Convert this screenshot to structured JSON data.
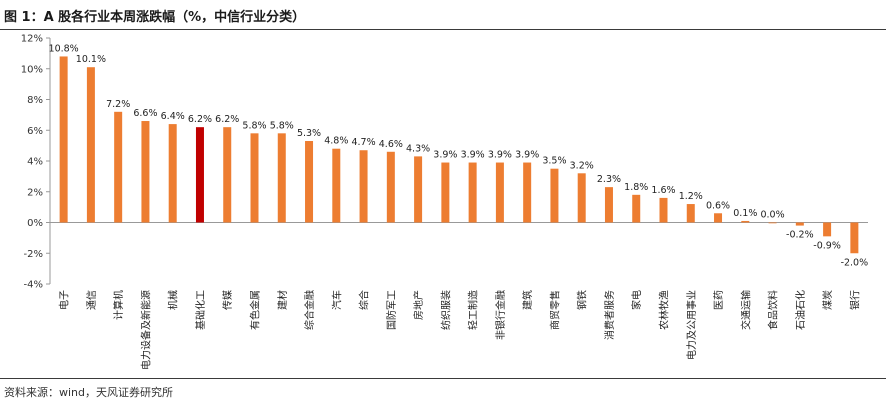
{
  "title": "图 1：A 股各行业本周涨跌幅（%，中信行业分类）",
  "source": "资料来源：wind，天风证券研究所",
  "colors": {
    "bar": "#ED7D31",
    "highlight": "#C00000",
    "axis": "#999999"
  },
  "chart_data": {
    "type": "bar",
    "title": "图 1：A 股各行业本周涨跌幅（%，中信行业分类）",
    "xlabel": "",
    "ylabel": "",
    "ylim": [
      -4,
      12
    ],
    "yticks": [
      "12%",
      "10%",
      "8%",
      "6%",
      "4%",
      "2%",
      "0%",
      "-2%",
      "-4%"
    ],
    "ytick_values": [
      12,
      10,
      8,
      6,
      4,
      2,
      0,
      -2,
      -4
    ],
    "grid": false,
    "highlight_category": "基础化工",
    "categories": [
      "电子",
      "通信",
      "计算机",
      "电力设备及新能源",
      "机械",
      "基础化工",
      "传媒",
      "有色金属",
      "建材",
      "综合金融",
      "汽车",
      "综合",
      "国防军工",
      "房地产",
      "纺织服装",
      "轻工制造",
      "非银行金融",
      "建筑",
      "商贸零售",
      "钢铁",
      "消费者服务",
      "家电",
      "农林牧渔",
      "电力及公用事业",
      "医药",
      "交通运输",
      "食品饮料",
      "石油石化",
      "煤炭",
      "银行"
    ],
    "values": [
      10.8,
      10.1,
      7.2,
      6.6,
      6.4,
      6.2,
      6.2,
      5.8,
      5.8,
      5.3,
      4.8,
      4.7,
      4.6,
      4.3,
      3.9,
      3.9,
      3.9,
      3.9,
      3.5,
      3.2,
      2.3,
      1.8,
      1.6,
      1.2,
      0.6,
      0.1,
      0.0,
      -0.2,
      -0.9,
      -2.0
    ],
    "value_labels": [
      "10.8%",
      "10.1%",
      "7.2%",
      "6.6%",
      "6.4%",
      "6.2%",
      "6.2%",
      "5.8%",
      "5.8%",
      "5.3%",
      "4.8%",
      "4.7%",
      "4.6%",
      "4.3%",
      "3.9%",
      "3.9%",
      "3.9%",
      "3.9%",
      "3.5%",
      "3.2%",
      "2.3%",
      "1.8%",
      "1.6%",
      "1.2%",
      "0.6%",
      "0.1%",
      "0.0%",
      "-0.2%",
      "-0.9%",
      "-2.0%"
    ]
  }
}
